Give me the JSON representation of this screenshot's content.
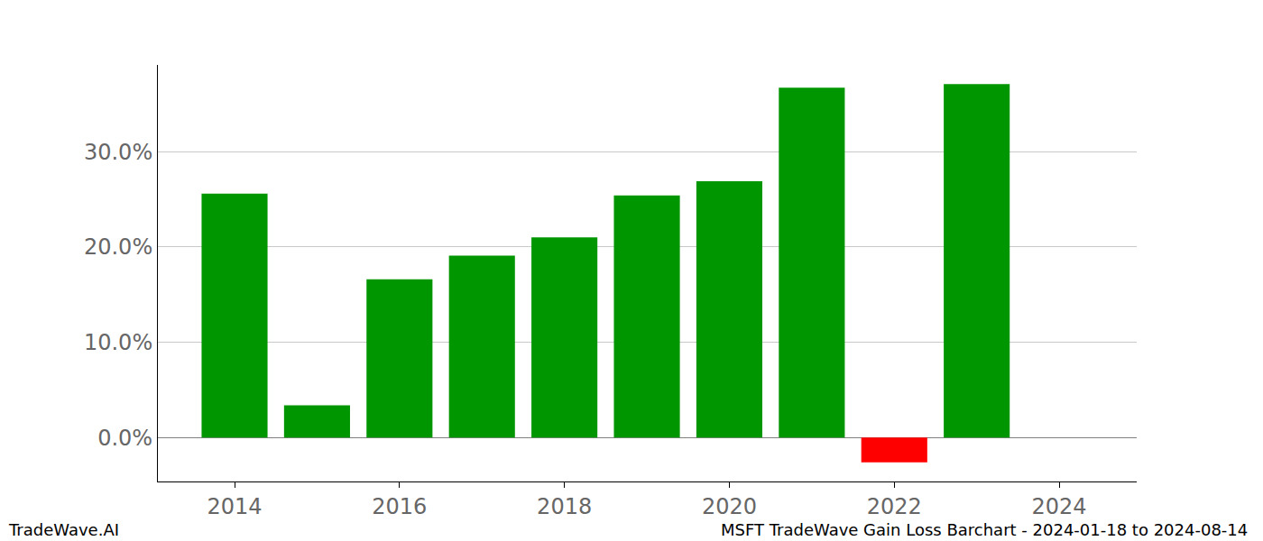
{
  "chart_data": {
    "type": "bar",
    "x": [
      2014,
      2015,
      2016,
      2017,
      2018,
      2019,
      2020,
      2021,
      2022,
      2023
    ],
    "values": [
      25.6,
      3.4,
      16.6,
      19.1,
      21.0,
      25.4,
      26.9,
      36.7,
      -2.6,
      37.1
    ],
    "colors": [
      "#009600",
      "#009600",
      "#009600",
      "#009600",
      "#009600",
      "#009600",
      "#009600",
      "#009600",
      "#ff0000",
      "#009600"
    ],
    "xlim": [
      2013.07,
      2024.94
    ],
    "xticks": [
      2014,
      2016,
      2018,
      2020,
      2022,
      2024
    ],
    "ylim": [
      -4.6,
      39.1
    ],
    "yticks": [
      {
        "value": 0,
        "label": "0.0%"
      },
      {
        "value": 10,
        "label": "10.0%"
      },
      {
        "value": 20,
        "label": "20.0%"
      },
      {
        "value": 30,
        "label": "30.0%"
      }
    ],
    "grid": true,
    "annotations": [
      "TradeWave.AI",
      "MSFT TradeWave Gain Loss Barchart - 2024-01-18 to 2024-08-14"
    ]
  }
}
